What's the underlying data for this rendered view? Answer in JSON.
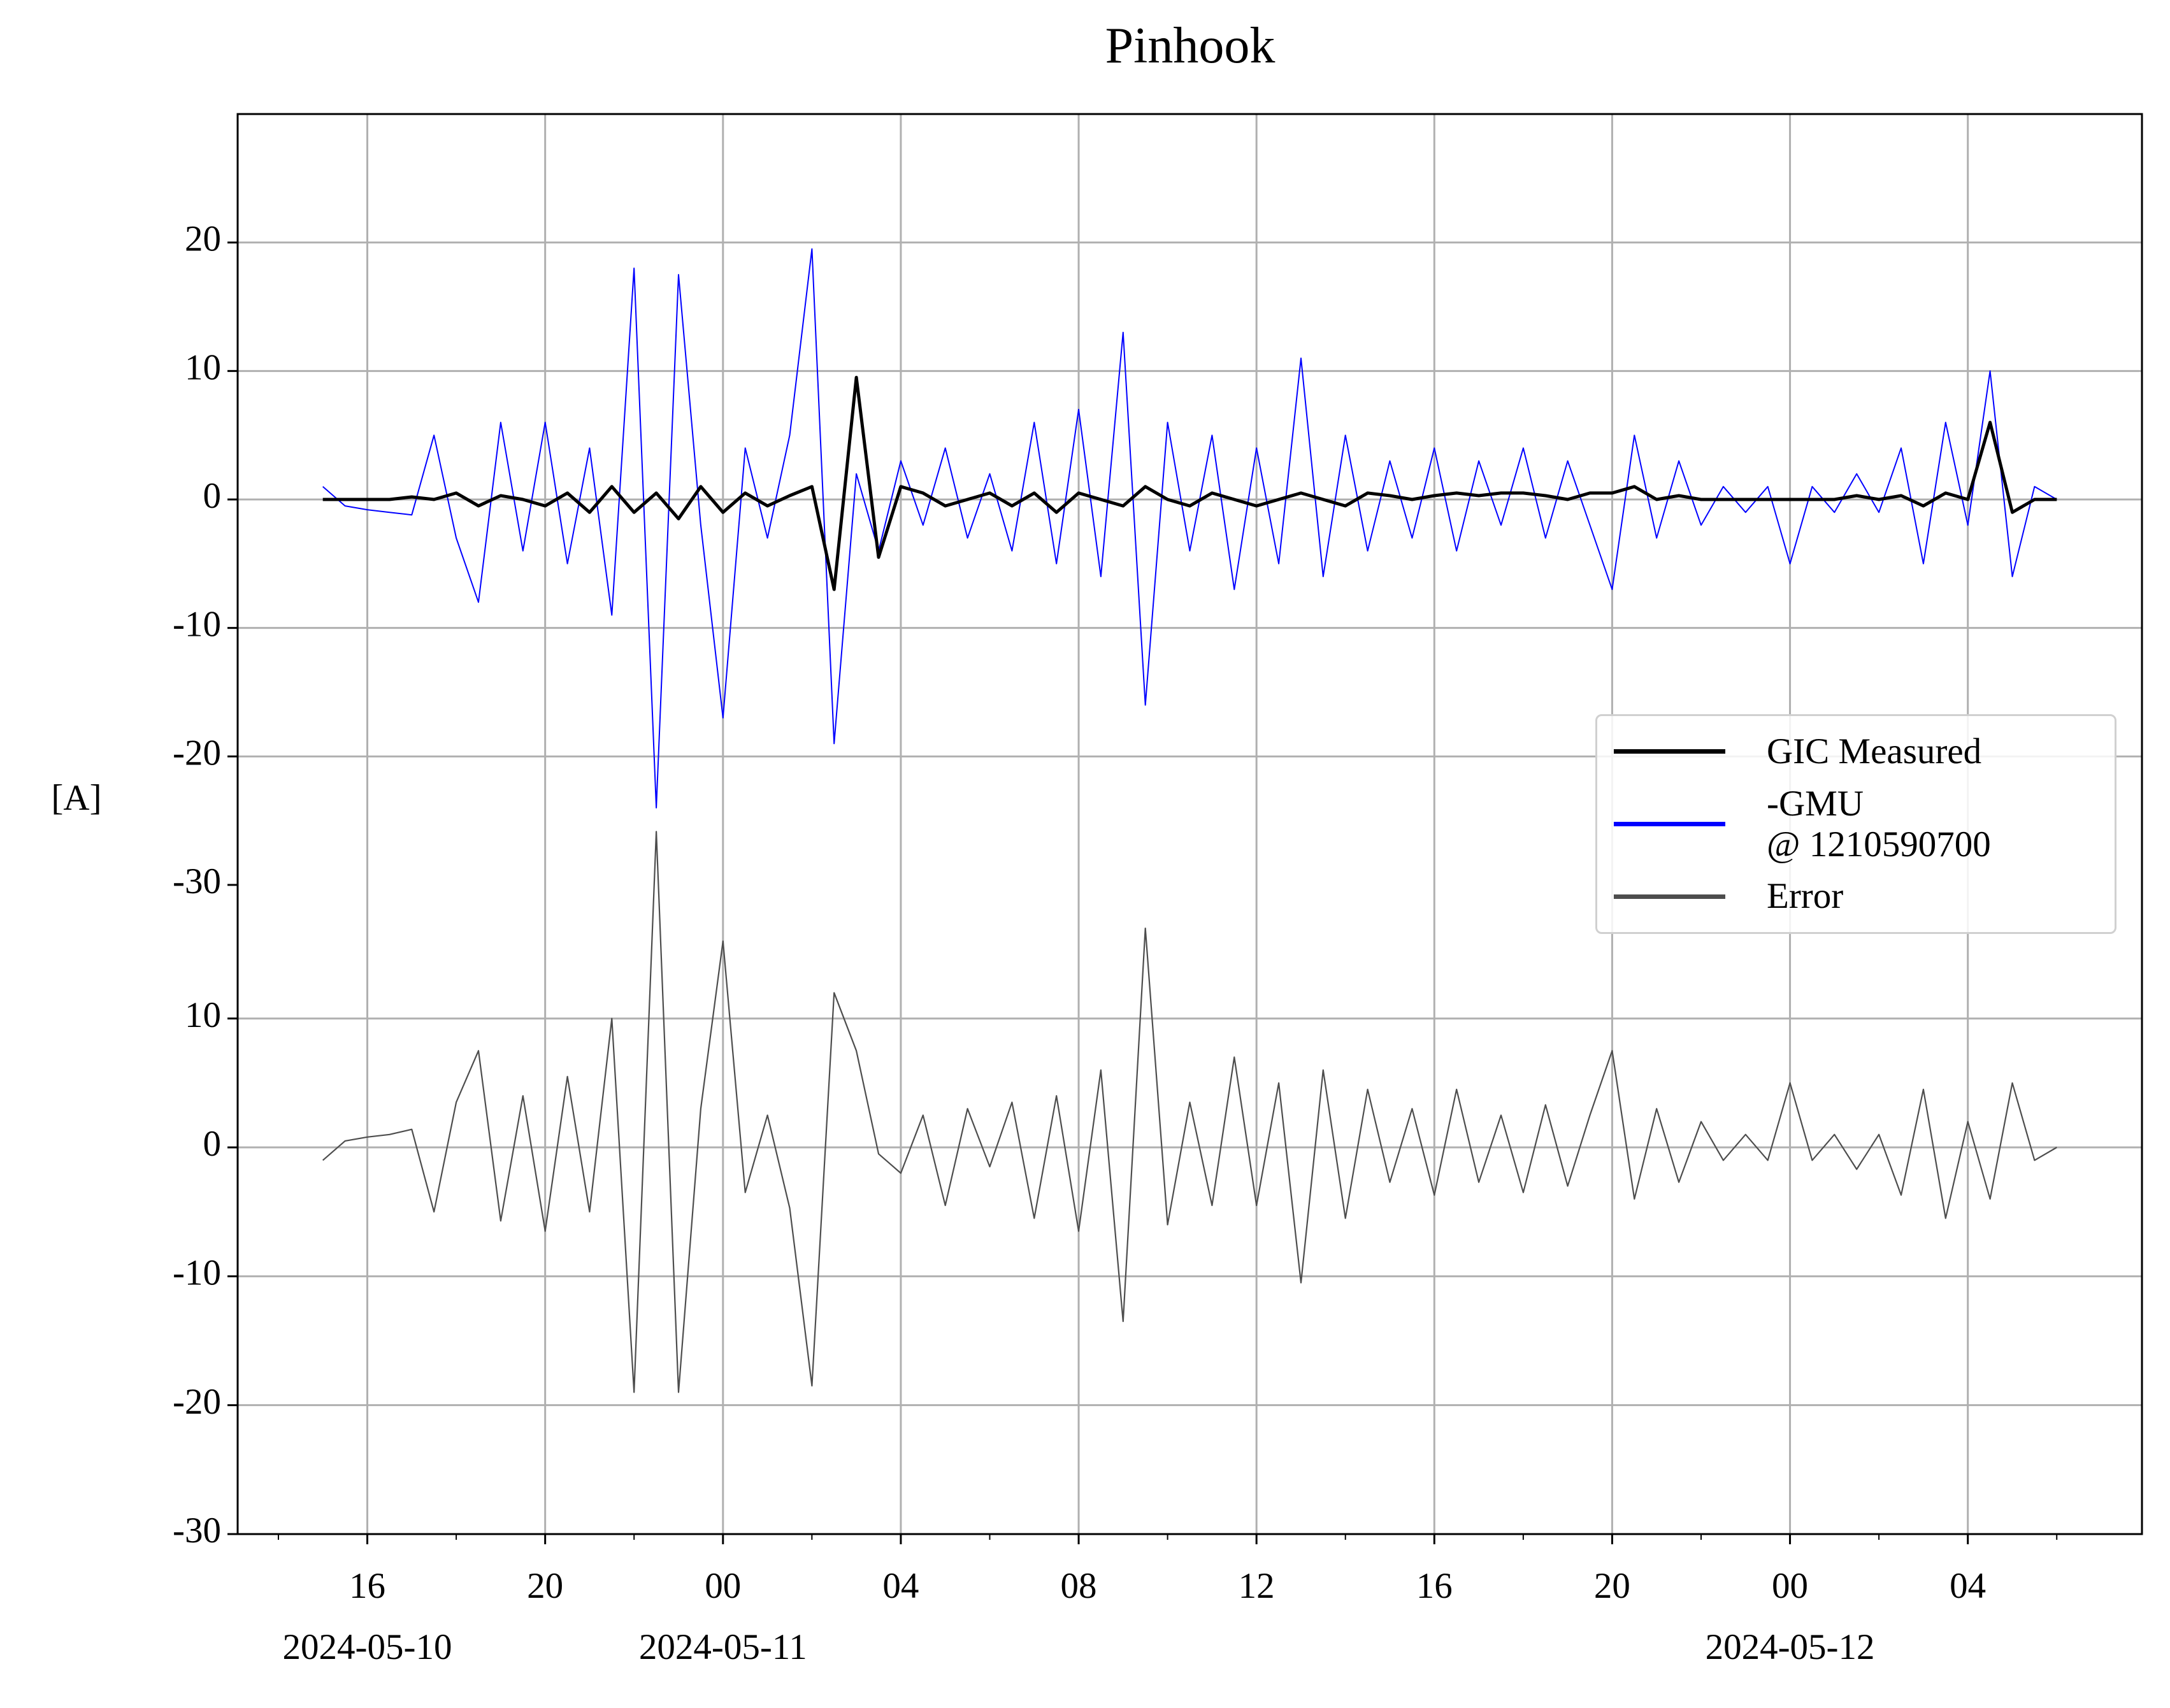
{
  "chart_data": [
    {
      "type": "line",
      "title": "Pinhook",
      "ylabel": "[A]",
      "x": [
        "2024-05-10 15:00",
        "2024-05-10 15:30",
        "2024-05-10 16:00",
        "2024-05-10 16:30",
        "2024-05-10 17:00",
        "2024-05-10 17:30",
        "2024-05-10 18:00",
        "2024-05-10 18:30",
        "2024-05-10 19:00",
        "2024-05-10 19:30",
        "2024-05-10 20:00",
        "2024-05-10 20:30",
        "2024-05-10 21:00",
        "2024-05-10 21:30",
        "2024-05-10 22:00",
        "2024-05-10 22:30",
        "2024-05-10 23:00",
        "2024-05-10 23:30",
        "2024-05-11 00:00",
        "2024-05-11 00:30",
        "2024-05-11 01:00",
        "2024-05-11 01:30",
        "2024-05-11 02:00",
        "2024-05-11 02:30",
        "2024-05-11 03:00",
        "2024-05-11 03:30",
        "2024-05-11 04:00",
        "2024-05-11 04:30",
        "2024-05-11 05:00",
        "2024-05-11 05:30",
        "2024-05-11 06:00",
        "2024-05-11 06:30",
        "2024-05-11 07:00",
        "2024-05-11 07:30",
        "2024-05-11 08:00",
        "2024-05-11 08:30",
        "2024-05-11 09:00",
        "2024-05-11 09:30",
        "2024-05-11 10:00",
        "2024-05-11 10:30",
        "2024-05-11 11:00",
        "2024-05-11 11:30",
        "2024-05-11 12:00",
        "2024-05-11 12:30",
        "2024-05-11 13:00",
        "2024-05-11 13:30",
        "2024-05-11 14:00",
        "2024-05-11 14:30",
        "2024-05-11 15:00",
        "2024-05-11 15:30",
        "2024-05-11 16:00",
        "2024-05-11 16:30",
        "2024-05-11 17:00",
        "2024-05-11 17:30",
        "2024-05-11 18:00",
        "2024-05-11 18:30",
        "2024-05-11 19:00",
        "2024-05-11 19:30",
        "2024-05-11 20:00",
        "2024-05-11 20:30",
        "2024-05-11 21:00",
        "2024-05-11 21:30",
        "2024-05-11 22:00",
        "2024-05-11 22:30",
        "2024-05-11 23:00",
        "2024-05-11 23:30",
        "2024-05-12 00:00",
        "2024-05-12 00:30",
        "2024-05-12 01:00",
        "2024-05-12 01:30",
        "2024-05-12 02:00",
        "2024-05-12 02:30",
        "2024-05-12 03:00",
        "2024-05-12 03:30",
        "2024-05-12 04:00",
        "2024-05-12 04:30",
        "2024-05-12 05:00",
        "2024-05-12 05:30",
        "2024-05-12 06:00"
      ],
      "series": [
        {
          "name": "GIC Measured",
          "color": "#000000",
          "values": [
            0,
            0,
            0,
            0,
            0.2,
            0,
            0.5,
            -0.5,
            0.3,
            0,
            -0.5,
            0.5,
            -1,
            1,
            -1,
            0.5,
            -1.5,
            1,
            -1,
            0.5,
            -0.5,
            0.3,
            1,
            -7,
            9.5,
            -4.5,
            1,
            0.5,
            -0.5,
            0,
            0.5,
            -0.5,
            0.5,
            -1,
            0.5,
            0,
            -0.5,
            1,
            0,
            -0.5,
            0.5,
            0,
            -0.5,
            0,
            0.5,
            0,
            -0.5,
            0.5,
            0.3,
            0,
            0.3,
            0.5,
            0.3,
            0.5,
            0.5,
            0.3,
            0,
            0.5,
            0.5,
            1,
            0,
            0.3,
            0,
            0,
            0,
            0,
            0,
            0,
            0,
            0.3,
            0,
            0.3,
            -0.5,
            0.5,
            0,
            6,
            -1,
            0,
            0
          ]
        },
        {
          "name": "-GMU\n@ 1210590700",
          "color": "#0000ff",
          "values": [
            1,
            -0.5,
            -0.8,
            -1,
            -1.2,
            5,
            -3,
            -8,
            6,
            -4,
            6,
            -5,
            4,
            -9,
            18,
            -24,
            17.5,
            -2,
            -17,
            4,
            -3,
            5,
            19.5,
            -19,
            2,
            -4,
            3,
            -2,
            4,
            -3,
            2,
            -4,
            6,
            -5,
            7,
            -6,
            13,
            -16,
            6,
            -4,
            5,
            -7,
            4,
            -5,
            11,
            -6,
            5,
            -4,
            3,
            -3,
            4,
            -4,
            3,
            -2,
            4,
            -3,
            3,
            -2,
            -7,
            5,
            -3,
            3,
            -2,
            1,
            -1,
            1,
            -5,
            1,
            -1,
            2,
            -1,
            4,
            -5,
            6,
            -2,
            10,
            -6,
            1,
            0
          ]
        }
      ],
      "ylim": [
        -30,
        30
      ],
      "yticks": [
        -30,
        -20,
        -10,
        0,
        10,
        20
      ],
      "grid": true,
      "legend": "center right"
    },
    {
      "type": "line",
      "x": [
        "2024-05-10 15:00",
        "2024-05-10 15:30",
        "2024-05-10 16:00",
        "2024-05-10 16:30",
        "2024-05-10 17:00",
        "2024-05-10 17:30",
        "2024-05-10 18:00",
        "2024-05-10 18:30",
        "2024-05-10 19:00",
        "2024-05-10 19:30",
        "2024-05-10 20:00",
        "2024-05-10 20:30",
        "2024-05-10 21:00",
        "2024-05-10 21:30",
        "2024-05-10 22:00",
        "2024-05-10 22:30",
        "2024-05-10 23:00",
        "2024-05-10 23:30",
        "2024-05-11 00:00",
        "2024-05-11 00:30",
        "2024-05-11 01:00",
        "2024-05-11 01:30",
        "2024-05-11 02:00",
        "2024-05-11 02:30",
        "2024-05-11 03:00",
        "2024-05-11 03:30",
        "2024-05-11 04:00",
        "2024-05-11 04:30",
        "2024-05-11 05:00",
        "2024-05-11 05:30",
        "2024-05-11 06:00",
        "2024-05-11 06:30",
        "2024-05-11 07:00",
        "2024-05-11 07:30",
        "2024-05-11 08:00",
        "2024-05-11 08:30",
        "2024-05-11 09:00",
        "2024-05-11 09:30",
        "2024-05-11 10:00",
        "2024-05-11 10:30",
        "2024-05-11 11:00",
        "2024-05-11 11:30",
        "2024-05-11 12:00",
        "2024-05-11 12:30",
        "2024-05-11 13:00",
        "2024-05-11 13:30",
        "2024-05-11 14:00",
        "2024-05-11 14:30",
        "2024-05-11 15:00",
        "2024-05-11 15:30",
        "2024-05-11 16:00",
        "2024-05-11 16:30",
        "2024-05-11 17:00",
        "2024-05-11 17:30",
        "2024-05-11 18:00",
        "2024-05-11 18:30",
        "2024-05-11 19:00",
        "2024-05-11 19:30",
        "2024-05-11 20:00",
        "2024-05-11 20:30",
        "2024-05-11 21:00",
        "2024-05-11 21:30",
        "2024-05-11 22:00",
        "2024-05-11 22:30",
        "2024-05-11 23:00",
        "2024-05-11 23:30",
        "2024-05-12 00:00",
        "2024-05-12 00:30",
        "2024-05-12 01:00",
        "2024-05-12 01:30",
        "2024-05-12 02:00",
        "2024-05-12 02:30",
        "2024-05-12 03:00",
        "2024-05-12 03:30",
        "2024-05-12 04:00",
        "2024-05-12 04:30",
        "2024-05-12 05:00",
        "2024-05-12 05:30",
        "2024-05-12 06:00"
      ],
      "series": [
        {
          "name": "Error",
          "color": "#4d4d4d",
          "values": [
            -1,
            0.5,
            0.8,
            1,
            1.4,
            -5,
            3.5,
            7.5,
            -5.7,
            4,
            -6.5,
            5.5,
            -5,
            10,
            -19,
            24.5,
            -19,
            3,
            16,
            -3.5,
            2.5,
            -4.7,
            -18.5,
            12,
            7.5,
            -0.5,
            -2,
            2.5,
            -4.5,
            3,
            -1.5,
            3.5,
            -5.5,
            4,
            -6.5,
            6,
            -13.5,
            17,
            -6,
            3.5,
            -4.5,
            7,
            -4.5,
            5,
            -10.5,
            6,
            -5.5,
            4.5,
            -2.7,
            3,
            -3.7,
            4.5,
            -2.7,
            2.5,
            -3.5,
            3.3,
            -3,
            2.5,
            7.5,
            -4,
            3,
            -2.7,
            2,
            -1,
            1,
            -1,
            5,
            -1,
            1,
            -1.7,
            1,
            -3.7,
            4.5,
            -5.5,
            2,
            -4,
            5,
            -1,
            0
          ]
        }
      ],
      "ylim": [
        -30,
        26
      ],
      "yticks": [
        -30,
        -20,
        -10,
        0,
        10
      ],
      "grid": true,
      "xlim": [
        "2024-05-10 13:05",
        "2024-05-12 07:55"
      ],
      "xticks": [
        {
          "value": "2024-05-10 16:00",
          "label": "16",
          "sublabel": "2024-05-10"
        },
        {
          "value": "2024-05-10 20:00",
          "label": "20"
        },
        {
          "value": "2024-05-11 00:00",
          "label": "00",
          "sublabel": "2024-05-11"
        },
        {
          "value": "2024-05-11 04:00",
          "label": "04"
        },
        {
          "value": "2024-05-11 08:00",
          "label": "08"
        },
        {
          "value": "2024-05-11 12:00",
          "label": "12"
        },
        {
          "value": "2024-05-11 16:00",
          "label": "16"
        },
        {
          "value": "2024-05-11 20:00",
          "label": "20"
        },
        {
          "value": "2024-05-12 00:00",
          "label": "00",
          "sublabel": "2024-05-12"
        },
        {
          "value": "2024-05-12 04:00",
          "label": "04"
        }
      ],
      "xminorticks": [
        "2024-05-10 14:00",
        "2024-05-10 18:00",
        "2024-05-10 22:00",
        "2024-05-11 02:00",
        "2024-05-11 06:00",
        "2024-05-11 10:00",
        "2024-05-11 14:00",
        "2024-05-11 18:00",
        "2024-05-11 22:00",
        "2024-05-12 02:00",
        "2024-05-12 06:00"
      ]
    }
  ]
}
